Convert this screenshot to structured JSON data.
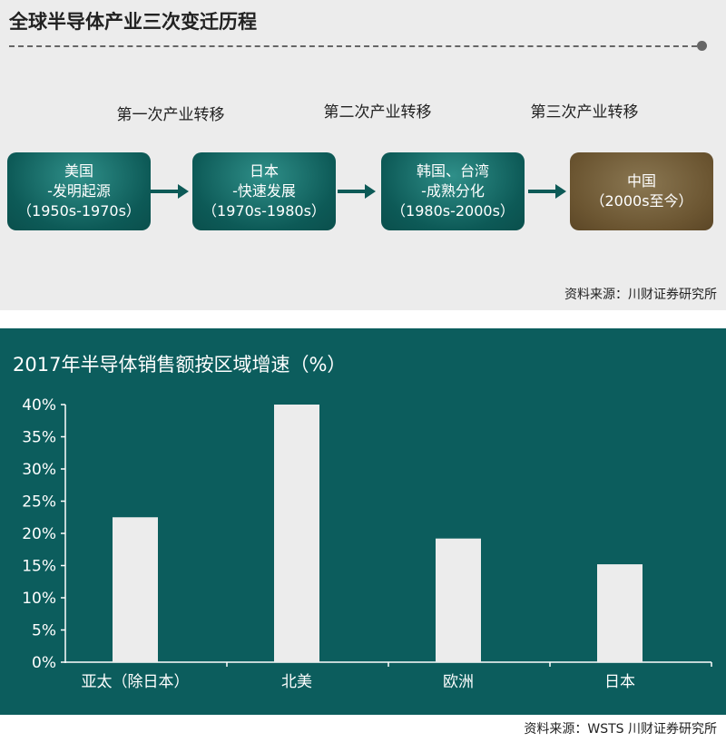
{
  "top": {
    "title": "全球半导体产业三次变迁历程",
    "stage_labels": [
      "第一次产业转移",
      "第二次产业转移",
      "第三次产业转移"
    ],
    "stages": [
      {
        "lines": [
          "美国",
          "-发明起源",
          "（1950s-1970s）"
        ]
      },
      {
        "lines": [
          "日本",
          "-快速发展",
          "（1970s-1980s）"
        ]
      },
      {
        "lines": [
          "韩国、台湾",
          "-成熟分化",
          "（1980s-2000s）"
        ]
      },
      {
        "lines": [
          "中国",
          "（2000s至今）"
        ]
      }
    ],
    "source": "资料来源：川财证券研究所",
    "colors": {
      "teal": "#0d5a57",
      "brown": "#6b5531",
      "arrow": "#0d5a57"
    }
  },
  "chart": {
    "title": "2017年半导体销售额按区域增速（%）",
    "source": "资料来源：WSTS 川财证券研究所"
  },
  "chart_data": {
    "type": "bar",
    "title": "2017年半导体销售额按区域增速（%）",
    "categories": [
      "亚太（除日本）",
      "北美",
      "欧洲",
      "日本"
    ],
    "values": [
      22.5,
      40,
      19.2,
      15.2
    ],
    "unit": "%",
    "ylim": [
      0,
      40
    ],
    "yticks": [
      "0%",
      "5%",
      "10%",
      "15%",
      "20%",
      "25%",
      "30%",
      "35%",
      "40%"
    ],
    "grid": false,
    "bar_color": "#ececec",
    "background": "#0c5d5d"
  }
}
